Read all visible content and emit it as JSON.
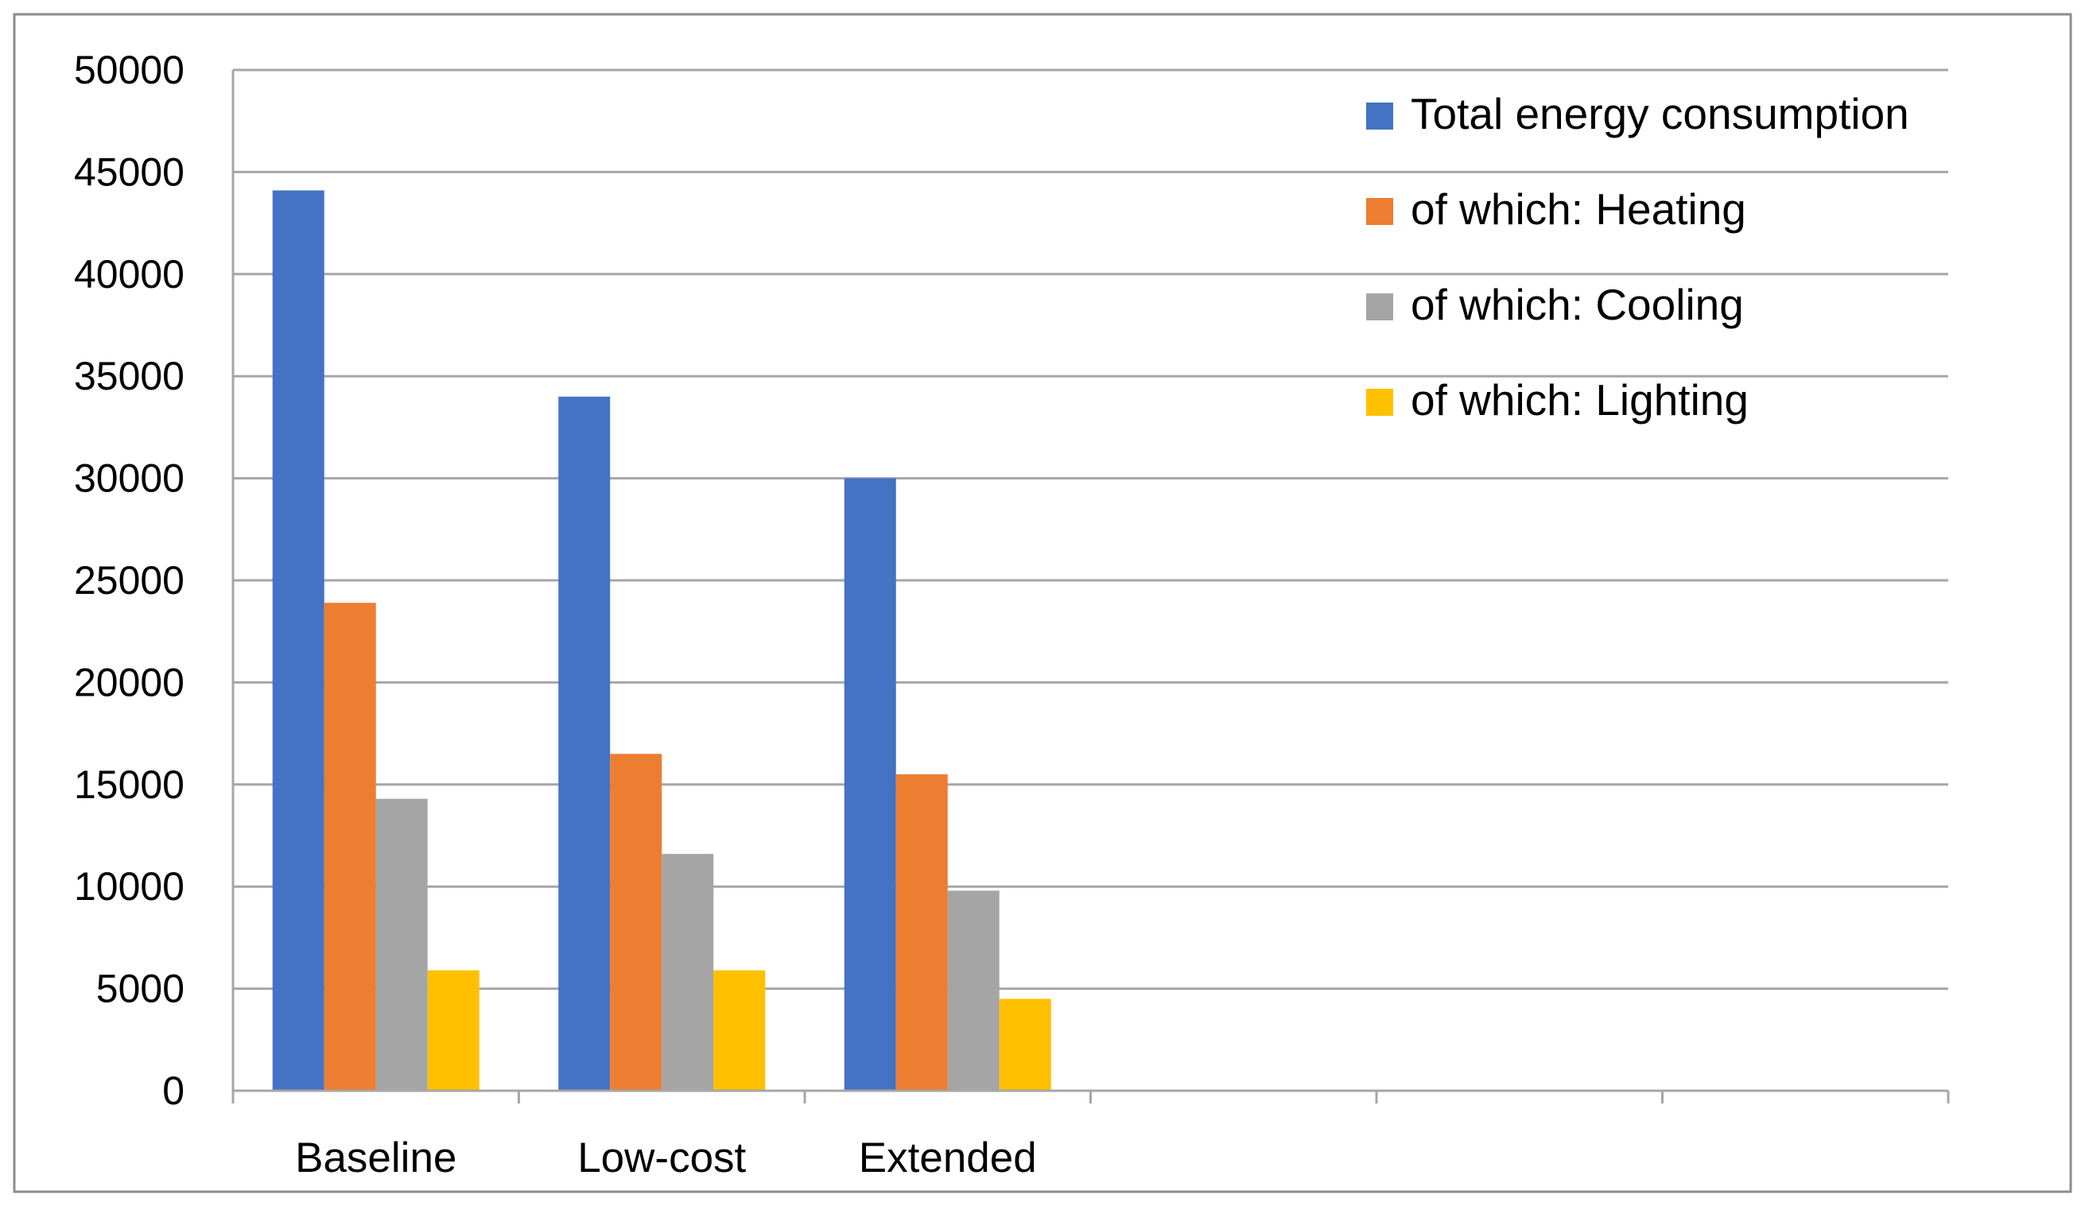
{
  "chart_data": {
    "type": "bar",
    "title": "",
    "xlabel": "",
    "ylabel": "",
    "categories": [
      "Baseline",
      "Low-cost",
      "Extended",
      "",
      "",
      ""
    ],
    "ylim": [
      0,
      50000
    ],
    "yticks": [
      "0",
      "5000",
      "10000",
      "15000",
      "20000",
      "25000",
      "30000",
      "35000",
      "40000",
      "45000",
      "50000"
    ],
    "grid": true,
    "legend_position": "top-right",
    "series": [
      {
        "name": "Total energy consumption",
        "color": "#4472C4",
        "values": [
          44100,
          34000,
          30000,
          null,
          null,
          null
        ]
      },
      {
        "name": "of which: Heating",
        "color": "#ED7D31",
        "values": [
          23900,
          16500,
          15500,
          null,
          null,
          null
        ]
      },
      {
        "name": "of which: Cooling",
        "color": "#A5A5A5",
        "values": [
          14300,
          11600,
          9800,
          null,
          null,
          null
        ]
      },
      {
        "name": "of which: Lighting",
        "color": "#FFC000",
        "values": [
          5900,
          5900,
          4500,
          null,
          null,
          null
        ]
      }
    ]
  }
}
